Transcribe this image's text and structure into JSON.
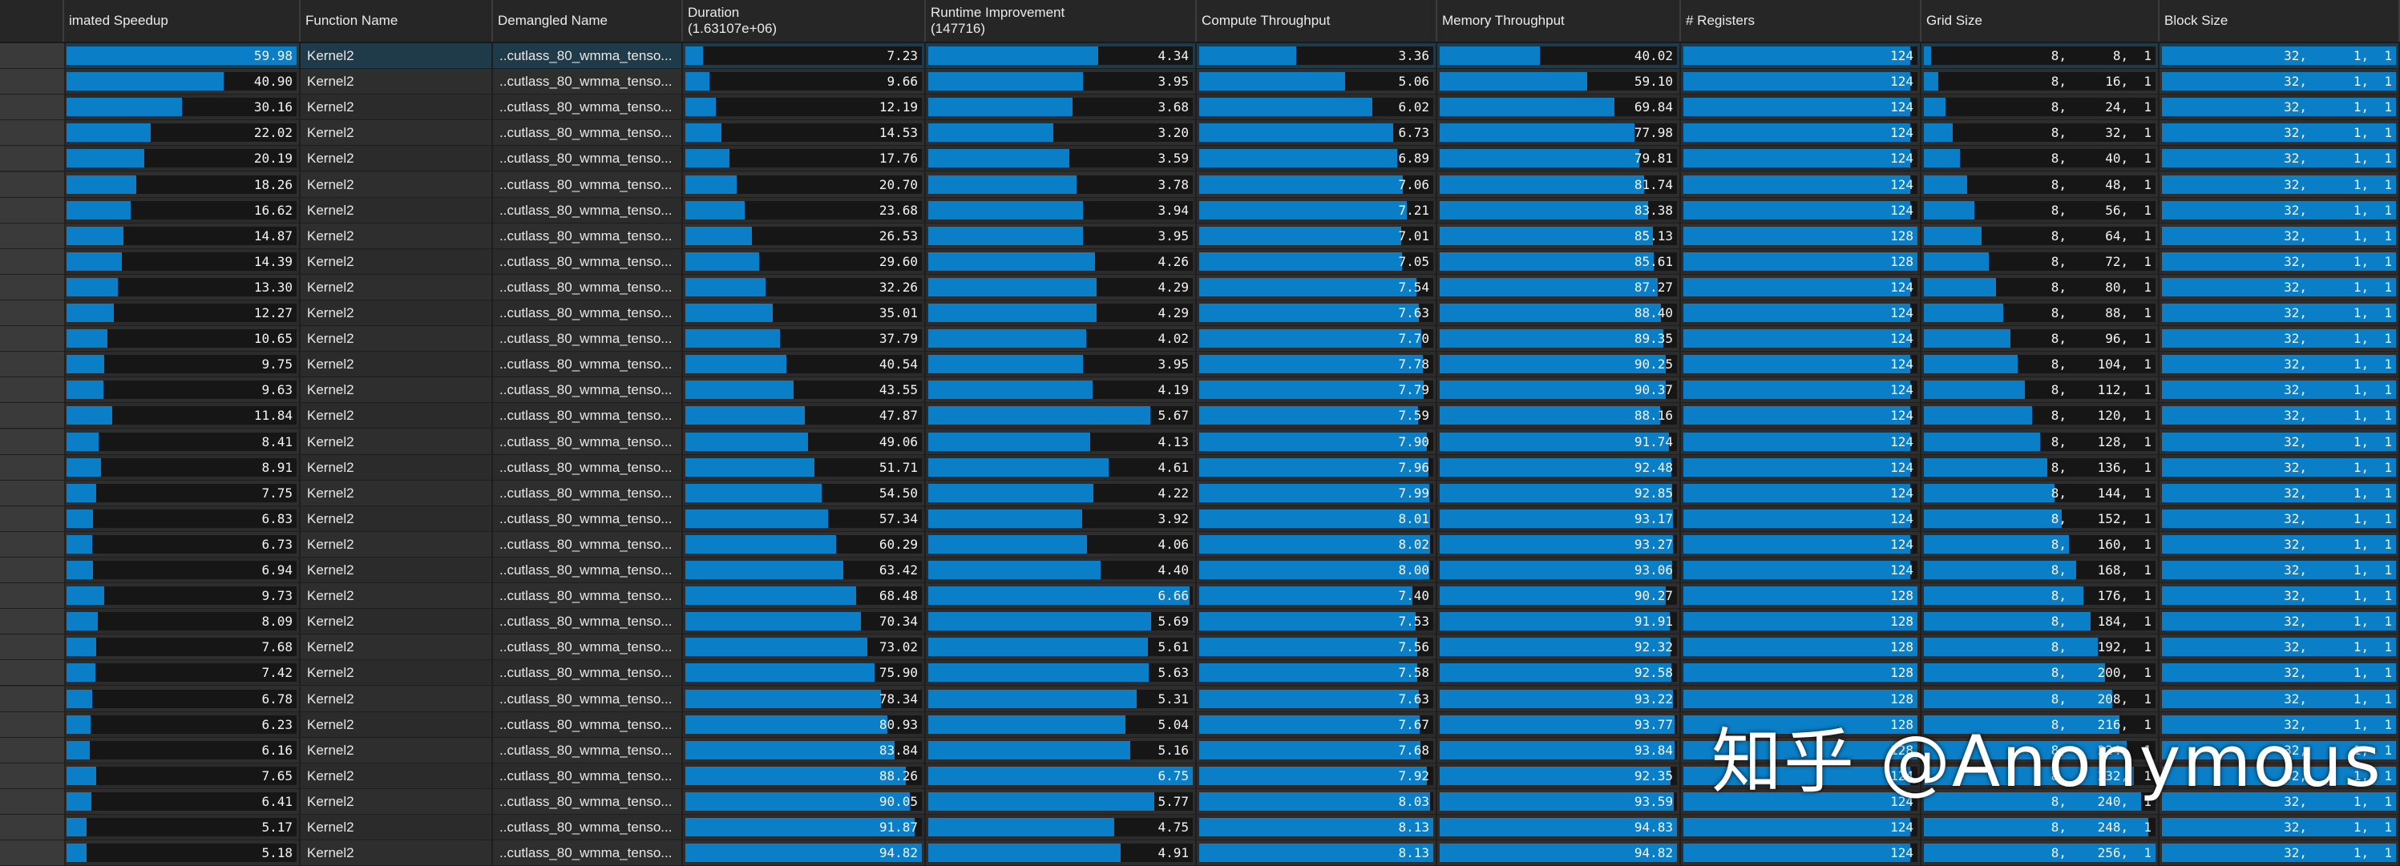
{
  "columns": [
    {
      "key": "speedup",
      "label": "imated Speedup",
      "type": "bar"
    },
    {
      "key": "function",
      "label": "Function Name",
      "type": "text"
    },
    {
      "key": "demangled",
      "label": "Demangled Name",
      "type": "text"
    },
    {
      "key": "duration",
      "label": "Duration\n(1.63107e+06)",
      "type": "bar"
    },
    {
      "key": "runtime",
      "label": "Runtime Improvement\n(147716)",
      "type": "bar"
    },
    {
      "key": "compute",
      "label": "Compute Throughput",
      "type": "bar"
    },
    {
      "key": "memory",
      "label": "Memory Throughput",
      "type": "bar"
    },
    {
      "key": "registers",
      "label": "# Registers",
      "type": "bar"
    },
    {
      "key": "grid",
      "label": "Grid Size",
      "type": "triple"
    },
    {
      "key": "block",
      "label": "Block Size",
      "type": "triple"
    }
  ],
  "bar_max": {
    "speedup": 59.98,
    "duration": 94.82,
    "runtime": 6.75,
    "compute": 8.13,
    "memory": 94.83,
    "registers": 128,
    "grid": 256,
    "block": 32
  },
  "rows": [
    {
      "speedup": "59.98",
      "function": "Kernel2",
      "demangled": "..cutlass_80_wmma_tenso...",
      "duration": "7.23",
      "runtime": "4.34",
      "compute": "3.36",
      "memory": "40.02",
      "registers": "124",
      "grid": [
        "8",
        "8",
        "1"
      ],
      "block": [
        "32",
        "1",
        "1"
      ]
    },
    {
      "speedup": "40.90",
      "function": "Kernel2",
      "demangled": "..cutlass_80_wmma_tenso...",
      "duration": "9.66",
      "runtime": "3.95",
      "compute": "5.06",
      "memory": "59.10",
      "registers": "124",
      "grid": [
        "8",
        "16",
        "1"
      ],
      "block": [
        "32",
        "1",
        "1"
      ]
    },
    {
      "speedup": "30.16",
      "function": "Kernel2",
      "demangled": "..cutlass_80_wmma_tenso...",
      "duration": "12.19",
      "runtime": "3.68",
      "compute": "6.02",
      "memory": "69.84",
      "registers": "124",
      "grid": [
        "8",
        "24",
        "1"
      ],
      "block": [
        "32",
        "1",
        "1"
      ]
    },
    {
      "speedup": "22.02",
      "function": "Kernel2",
      "demangled": "..cutlass_80_wmma_tenso...",
      "duration": "14.53",
      "runtime": "3.20",
      "compute": "6.73",
      "memory": "77.98",
      "registers": "124",
      "grid": [
        "8",
        "32",
        "1"
      ],
      "block": [
        "32",
        "1",
        "1"
      ]
    },
    {
      "speedup": "20.19",
      "function": "Kernel2",
      "demangled": "..cutlass_80_wmma_tenso...",
      "duration": "17.76",
      "runtime": "3.59",
      "compute": "6.89",
      "memory": "79.81",
      "registers": "124",
      "grid": [
        "8",
        "40",
        "1"
      ],
      "block": [
        "32",
        "1",
        "1"
      ]
    },
    {
      "speedup": "18.26",
      "function": "Kernel2",
      "demangled": "..cutlass_80_wmma_tenso...",
      "duration": "20.70",
      "runtime": "3.78",
      "compute": "7.06",
      "memory": "81.74",
      "registers": "124",
      "grid": [
        "8",
        "48",
        "1"
      ],
      "block": [
        "32",
        "1",
        "1"
      ]
    },
    {
      "speedup": "16.62",
      "function": "Kernel2",
      "demangled": "..cutlass_80_wmma_tenso...",
      "duration": "23.68",
      "runtime": "3.94",
      "compute": "7.21",
      "memory": "83.38",
      "registers": "124",
      "grid": [
        "8",
        "56",
        "1"
      ],
      "block": [
        "32",
        "1",
        "1"
      ]
    },
    {
      "speedup": "14.87",
      "function": "Kernel2",
      "demangled": "..cutlass_80_wmma_tenso...",
      "duration": "26.53",
      "runtime": "3.95",
      "compute": "7.01",
      "memory": "85.13",
      "registers": "128",
      "grid": [
        "8",
        "64",
        "1"
      ],
      "block": [
        "32",
        "1",
        "1"
      ]
    },
    {
      "speedup": "14.39",
      "function": "Kernel2",
      "demangled": "..cutlass_80_wmma_tenso...",
      "duration": "29.60",
      "runtime": "4.26",
      "compute": "7.05",
      "memory": "85.61",
      "registers": "128",
      "grid": [
        "8",
        "72",
        "1"
      ],
      "block": [
        "32",
        "1",
        "1"
      ]
    },
    {
      "speedup": "13.30",
      "function": "Kernel2",
      "demangled": "..cutlass_80_wmma_tenso...",
      "duration": "32.26",
      "runtime": "4.29",
      "compute": "7.54",
      "memory": "87.27",
      "registers": "124",
      "grid": [
        "8",
        "80",
        "1"
      ],
      "block": [
        "32",
        "1",
        "1"
      ]
    },
    {
      "speedup": "12.27",
      "function": "Kernel2",
      "demangled": "..cutlass_80_wmma_tenso...",
      "duration": "35.01",
      "runtime": "4.29",
      "compute": "7.63",
      "memory": "88.40",
      "registers": "124",
      "grid": [
        "8",
        "88",
        "1"
      ],
      "block": [
        "32",
        "1",
        "1"
      ]
    },
    {
      "speedup": "10.65",
      "function": "Kernel2",
      "demangled": "..cutlass_80_wmma_tenso...",
      "duration": "37.79",
      "runtime": "4.02",
      "compute": "7.70",
      "memory": "89.35",
      "registers": "124",
      "grid": [
        "8",
        "96",
        "1"
      ],
      "block": [
        "32",
        "1",
        "1"
      ]
    },
    {
      "speedup": "9.75",
      "function": "Kernel2",
      "demangled": "..cutlass_80_wmma_tenso...",
      "duration": "40.54",
      "runtime": "3.95",
      "compute": "7.78",
      "memory": "90.25",
      "registers": "124",
      "grid": [
        "8",
        "104",
        "1"
      ],
      "block": [
        "32",
        "1",
        "1"
      ]
    },
    {
      "speedup": "9.63",
      "function": "Kernel2",
      "demangled": "..cutlass_80_wmma_tenso...",
      "duration": "43.55",
      "runtime": "4.19",
      "compute": "7.79",
      "memory": "90.37",
      "registers": "124",
      "grid": [
        "8",
        "112",
        "1"
      ],
      "block": [
        "32",
        "1",
        "1"
      ]
    },
    {
      "speedup": "11.84",
      "function": "Kernel2",
      "demangled": "..cutlass_80_wmma_tenso...",
      "duration": "47.87",
      "runtime": "5.67",
      "compute": "7.59",
      "memory": "88.16",
      "registers": "124",
      "grid": [
        "8",
        "120",
        "1"
      ],
      "block": [
        "32",
        "1",
        "1"
      ]
    },
    {
      "speedup": "8.41",
      "function": "Kernel2",
      "demangled": "..cutlass_80_wmma_tenso...",
      "duration": "49.06",
      "runtime": "4.13",
      "compute": "7.90",
      "memory": "91.74",
      "registers": "124",
      "grid": [
        "8",
        "128",
        "1"
      ],
      "block": [
        "32",
        "1",
        "1"
      ]
    },
    {
      "speedup": "8.91",
      "function": "Kernel2",
      "demangled": "..cutlass_80_wmma_tenso...",
      "duration": "51.71",
      "runtime": "4.61",
      "compute": "7.96",
      "memory": "92.48",
      "registers": "124",
      "grid": [
        "8",
        "136",
        "1"
      ],
      "block": [
        "32",
        "1",
        "1"
      ]
    },
    {
      "speedup": "7.75",
      "function": "Kernel2",
      "demangled": "..cutlass_80_wmma_tenso...",
      "duration": "54.50",
      "runtime": "4.22",
      "compute": "7.99",
      "memory": "92.85",
      "registers": "124",
      "grid": [
        "8",
        "144",
        "1"
      ],
      "block": [
        "32",
        "1",
        "1"
      ]
    },
    {
      "speedup": "6.83",
      "function": "Kernel2",
      "demangled": "..cutlass_80_wmma_tenso...",
      "duration": "57.34",
      "runtime": "3.92",
      "compute": "8.01",
      "memory": "93.17",
      "registers": "124",
      "grid": [
        "8",
        "152",
        "1"
      ],
      "block": [
        "32",
        "1",
        "1"
      ]
    },
    {
      "speedup": "6.73",
      "function": "Kernel2",
      "demangled": "..cutlass_80_wmma_tenso...",
      "duration": "60.29",
      "runtime": "4.06",
      "compute": "8.02",
      "memory": "93.27",
      "registers": "124",
      "grid": [
        "8",
        "160",
        "1"
      ],
      "block": [
        "32",
        "1",
        "1"
      ]
    },
    {
      "speedup": "6.94",
      "function": "Kernel2",
      "demangled": "..cutlass_80_wmma_tenso...",
      "duration": "63.42",
      "runtime": "4.40",
      "compute": "8.00",
      "memory": "93.06",
      "registers": "124",
      "grid": [
        "8",
        "168",
        "1"
      ],
      "block": [
        "32",
        "1",
        "1"
      ]
    },
    {
      "speedup": "9.73",
      "function": "Kernel2",
      "demangled": "..cutlass_80_wmma_tenso...",
      "duration": "68.48",
      "runtime": "6.66",
      "compute": "7.40",
      "memory": "90.27",
      "registers": "128",
      "grid": [
        "8",
        "176",
        "1"
      ],
      "block": [
        "32",
        "1",
        "1"
      ]
    },
    {
      "speedup": "8.09",
      "function": "Kernel2",
      "demangled": "..cutlass_80_wmma_tenso...",
      "duration": "70.34",
      "runtime": "5.69",
      "compute": "7.53",
      "memory": "91.91",
      "registers": "128",
      "grid": [
        "8",
        "184",
        "1"
      ],
      "block": [
        "32",
        "1",
        "1"
      ]
    },
    {
      "speedup": "7.68",
      "function": "Kernel2",
      "demangled": "..cutlass_80_wmma_tenso...",
      "duration": "73.02",
      "runtime": "5.61",
      "compute": "7.56",
      "memory": "92.32",
      "registers": "128",
      "grid": [
        "8",
        "192",
        "1"
      ],
      "block": [
        "32",
        "1",
        "1"
      ]
    },
    {
      "speedup": "7.42",
      "function": "Kernel2",
      "demangled": "..cutlass_80_wmma_tenso...",
      "duration": "75.90",
      "runtime": "5.63",
      "compute": "7.58",
      "memory": "92.58",
      "registers": "128",
      "grid": [
        "8",
        "200",
        "1"
      ],
      "block": [
        "32",
        "1",
        "1"
      ]
    },
    {
      "speedup": "6.78",
      "function": "Kernel2",
      "demangled": "..cutlass_80_wmma_tenso...",
      "duration": "78.34",
      "runtime": "5.31",
      "compute": "7.63",
      "memory": "93.22",
      "registers": "128",
      "grid": [
        "8",
        "208",
        "1"
      ],
      "block": [
        "32",
        "1",
        "1"
      ]
    },
    {
      "speedup": "6.23",
      "function": "Kernel2",
      "demangled": "..cutlass_80_wmma_tenso...",
      "duration": "80.93",
      "runtime": "5.04",
      "compute": "7.67",
      "memory": "93.77",
      "registers": "128",
      "grid": [
        "8",
        "216",
        "1"
      ],
      "block": [
        "32",
        "1",
        "1"
      ]
    },
    {
      "speedup": "6.16",
      "function": "Kernel2",
      "demangled": "..cutlass_80_wmma_tenso...",
      "duration": "83.84",
      "runtime": "5.16",
      "compute": "7.68",
      "memory": "93.84",
      "registers": "128",
      "grid": [
        "8",
        "224",
        "1"
      ],
      "block": [
        "32",
        "1",
        "1"
      ]
    },
    {
      "speedup": "7.65",
      "function": "Kernel2",
      "demangled": "..cutlass_80_wmma_tenso...",
      "duration": "88.26",
      "runtime": "6.75",
      "compute": "7.92",
      "memory": "92.35",
      "registers": "124",
      "grid": [
        "8",
        "232",
        "1"
      ],
      "block": [
        "32",
        "1",
        "1"
      ]
    },
    {
      "speedup": "6.41",
      "function": "Kernel2",
      "demangled": "..cutlass_80_wmma_tenso...",
      "duration": "90.05",
      "runtime": "5.77",
      "compute": "8.03",
      "memory": "93.59",
      "registers": "124",
      "grid": [
        "8",
        "240",
        "1"
      ],
      "block": [
        "32",
        "1",
        "1"
      ]
    },
    {
      "speedup": "5.17",
      "function": "Kernel2",
      "demangled": "..cutlass_80_wmma_tenso...",
      "duration": "91.87",
      "runtime": "4.75",
      "compute": "8.13",
      "memory": "94.83",
      "registers": "124",
      "grid": [
        "8",
        "248",
        "1"
      ],
      "block": [
        "32",
        "1",
        "1"
      ]
    },
    {
      "speedup": "5.18",
      "function": "Kernel2",
      "demangled": "..cutlass_80_wmma_tenso...",
      "duration": "94.82",
      "runtime": "4.91",
      "compute": "8.13",
      "memory": "94.82",
      "registers": "124",
      "grid": [
        "8",
        "256",
        "1"
      ],
      "block": [
        "32",
        "1",
        "1"
      ]
    }
  ],
  "watermark": "知乎 @Anonymous"
}
